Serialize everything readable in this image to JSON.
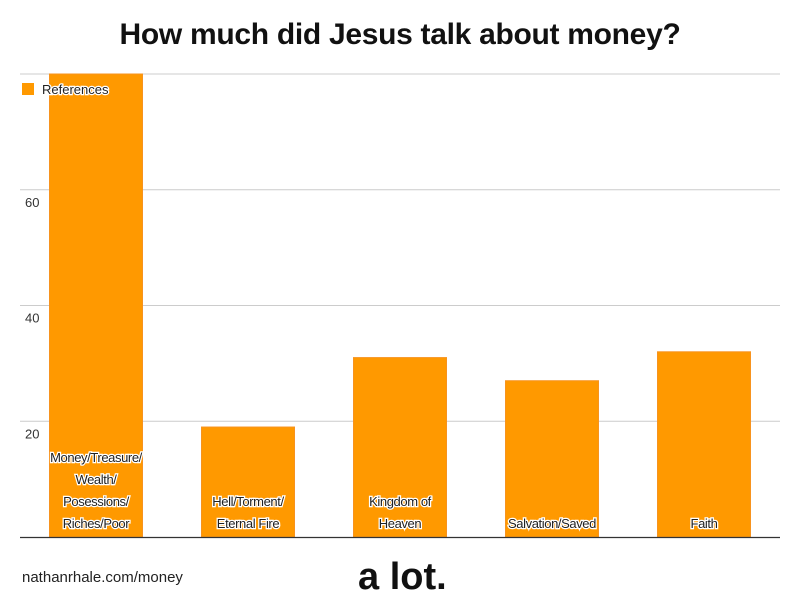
{
  "chart_data": {
    "type": "bar",
    "title": "How much did Jesus talk about money?",
    "xlabel": "",
    "ylabel": "",
    "categories": [
      [
        "Money/Treasure/",
        "Wealth/",
        "Posessions/",
        "Riches/Poor"
      ],
      [
        "Hell/Torment/",
        "Eternal Fire"
      ],
      [
        "Kingdom of",
        "Heaven"
      ],
      [
        "Salvation/Saved"
      ],
      [
        "Faith"
      ]
    ],
    "series": [
      {
        "name": "References",
        "values": [
          80,
          19,
          31,
          27,
          32
        ],
        "color": "#ff9900"
      }
    ],
    "ylim": [
      0,
      80
    ],
    "yticks": [
      20,
      40,
      60
    ],
    "grid": true,
    "legend": "top-left"
  },
  "footer": {
    "url": "nathanrhale.com/money",
    "tagline": "a lot."
  }
}
